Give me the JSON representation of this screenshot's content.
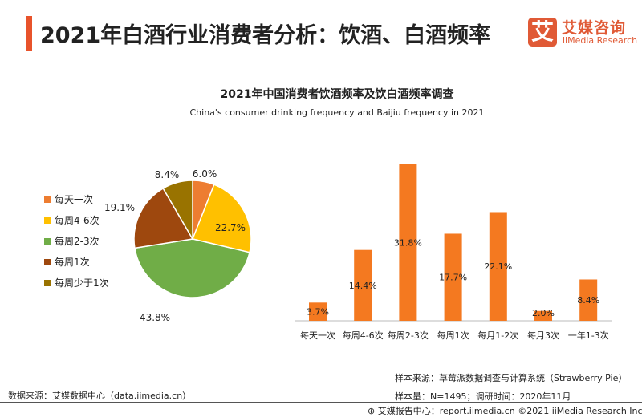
{
  "header": {
    "title": "2021年白酒行业消费者分析：饮酒、白酒频率",
    "logo_glyph": "艾",
    "logo_cn": "艾媒咨询",
    "logo_en": "iiMedia Research",
    "accent": "#e8532b"
  },
  "chart_data": [
    {
      "type": "pie",
      "title": "2021年中国消费者饮酒频率及饮白酒频率调查",
      "subtitle": "China's consumer drinking frequency and Baijiu frequency in 2021",
      "legend_position": "left",
      "categories": [
        "每天一次",
        "每周4-6次",
        "每周2-3次",
        "每周1次",
        "每周少于1次"
      ],
      "values": [
        6.0,
        22.7,
        43.8,
        19.1,
        8.4
      ],
      "labels": [
        "6.0%",
        "22.7%",
        "43.8%",
        "19.1%",
        "8.4%"
      ],
      "colors": [
        "#ed7d31",
        "#ffc000",
        "#70ad47",
        "#9e480e",
        "#997300"
      ]
    },
    {
      "type": "bar",
      "categories": [
        "每天一次",
        "每周4-6次",
        "每周2-3次",
        "每周1次",
        "每月1-2次",
        "每月3次",
        "一年1-3次"
      ],
      "values": [
        3.7,
        14.4,
        31.8,
        17.7,
        22.1,
        2.0,
        8.4
      ],
      "labels": [
        "3.7%",
        "14.4%",
        "31.8%",
        "17.7%",
        "22.1%",
        "2.0%",
        "8.4%"
      ],
      "color": "#f47920",
      "ylim": [
        0,
        32
      ]
    }
  ],
  "footer": {
    "source": "数据来源：艾媒数据中心（data.iimedia.cn）",
    "sample_source": "样本来源：草莓派数据调查与计算系统（Strawberry Pie）",
    "sample_size": "样本量：N=1495；调研时间：2020年11月",
    "report": "艾媒报告中心：report.iimedia.cn  ©2021  iiMedia Research Inc"
  }
}
